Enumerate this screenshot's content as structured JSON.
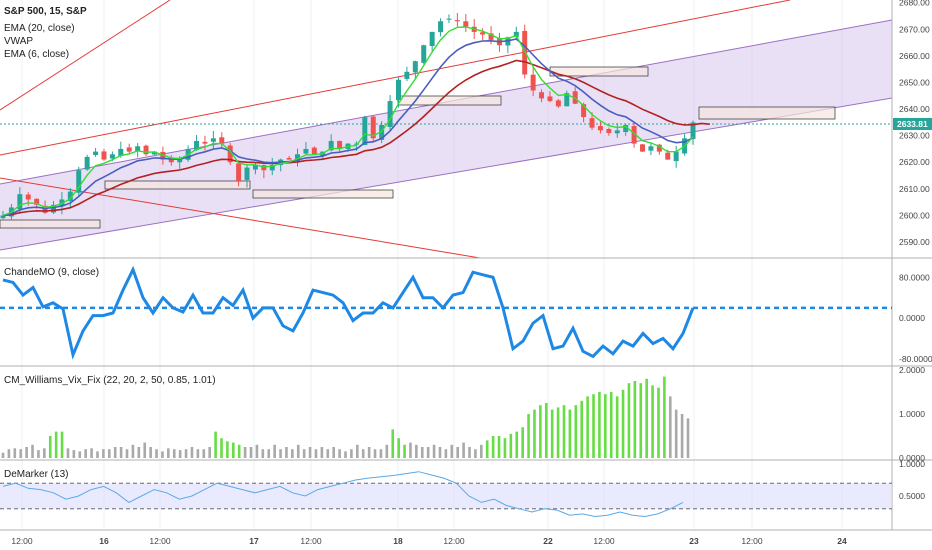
{
  "chart_data": [
    {
      "type": "candlestick",
      "title": "S&P 500, 15, S&P",
      "legend": [
        "EMA (20, close)",
        "VWAP",
        "EMA (6, close)"
      ],
      "colors": {
        "up": "#26a69a",
        "down": "#ef5350",
        "ema20": "#b22222",
        "vwap": "#4a5ebd",
        "ema6": "#33dd33",
        "channel": "#a77ac9"
      },
      "y_ticks": [
        2590,
        2600,
        2610,
        2620,
        2630,
        2640,
        2650,
        2660,
        2670,
        2680
      ],
      "y_ticks_labels": [
        "2590.00",
        "2600.00",
        "2610.00",
        "2620.00",
        "2630.00",
        "2640.00",
        "2650.00",
        "2660.00",
        "2670.00",
        "2680.00"
      ],
      "ylim": [
        2584,
        2681
      ],
      "current_price": "2633.81",
      "close_series": [
        2600,
        2603,
        2608,
        2606,
        2604,
        2601,
        2604,
        2606,
        2609,
        2617,
        2622,
        2624,
        2621,
        2623,
        2625,
        2624,
        2626,
        2623,
        2624,
        2621,
        2620,
        2621,
        2625,
        2628,
        2627,
        2629,
        2627,
        2620,
        2613,
        2618,
        2619,
        2617,
        2619,
        2621,
        2621,
        2623,
        2625,
        2623,
        2624,
        2628,
        2625,
        2627,
        2627,
        2637,
        2629,
        2634,
        2643,
        2651,
        2654,
        2658,
        2664,
        2669,
        2673,
        2674,
        2673,
        2671,
        2669,
        2668,
        2666,
        2664,
        2667,
        2669,
        2653,
        2647,
        2644,
        2643,
        2641,
        2646,
        2642,
        2637,
        2633,
        2632,
        2631,
        2632,
        2634,
        2627,
        2624,
        2626,
        2624,
        2621,
        2624,
        2629,
        2635
      ]
    },
    {
      "type": "line",
      "title": "ChandeMO (9, close)",
      "y_ticks_labels": [
        "80.0000",
        "0.0000",
        "-80.0000"
      ],
      "y_ticks": [
        80,
        0,
        -80
      ],
      "ylim": [
        -90,
        110
      ],
      "reference_line": 20,
      "colors": {
        "line": "#1e88e5"
      },
      "values": [
        75,
        70,
        45,
        60,
        22,
        30,
        18,
        -72,
        -25,
        5,
        5,
        10,
        55,
        95,
        40,
        10,
        40,
        20,
        12,
        45,
        10,
        10,
        40,
        25,
        55,
        0,
        20,
        20,
        -15,
        -25,
        10,
        55,
        50,
        45,
        30,
        -5,
        10,
        10,
        30,
        20,
        50,
        80,
        40,
        40,
        20,
        45,
        50,
        90,
        85,
        80,
        20,
        -60,
        -45,
        -10,
        5,
        -60,
        -55,
        -20,
        -65,
        -75,
        -55,
        -70,
        -45,
        -55,
        -30,
        -50,
        -40,
        -60,
        -30,
        20
      ]
    },
    {
      "type": "bar",
      "title": "CM_Williams_Vix_Fix (22, 20, 2, 50, 0.85, 1.01)",
      "y_ticks_labels": [
        "2.0000",
        "1.0000",
        "0.0000"
      ],
      "y_ticks": [
        2,
        1,
        0
      ],
      "ylim": [
        0,
        2
      ],
      "colors": {
        "normal": "#a9a9a9",
        "spike": "#66dd44"
      },
      "values": [
        0.12,
        0.2,
        0.22,
        0.2,
        0.25,
        0.3,
        0.18,
        0.22,
        0.5,
        0.6,
        0.6,
        0.22,
        0.18,
        0.15,
        0.2,
        0.22,
        0.15,
        0.2,
        0.2,
        0.25,
        0.25,
        0.2,
        0.3,
        0.25,
        0.35,
        0.25,
        0.2,
        0.15,
        0.22,
        0.2,
        0.18,
        0.2,
        0.25,
        0.2,
        0.2,
        0.25,
        0.6,
        0.45,
        0.38,
        0.35,
        0.3,
        0.25,
        0.25,
        0.3,
        0.2,
        0.2,
        0.3,
        0.2,
        0.25,
        0.2,
        0.3,
        0.2,
        0.25,
        0.2,
        0.25,
        0.2,
        0.25,
        0.2,
        0.15,
        0.2,
        0.3,
        0.2,
        0.25,
        0.2,
        0.2,
        0.3,
        0.65,
        0.45,
        0.3,
        0.35,
        0.3,
        0.25,
        0.25,
        0.3,
        0.25,
        0.2,
        0.3,
        0.25,
        0.35,
        0.25,
        0.2,
        0.3,
        0.4,
        0.5,
        0.5,
        0.45,
        0.55,
        0.6,
        0.7,
        1.0,
        1.1,
        1.2,
        1.25,
        1.1,
        1.15,
        1.2,
        1.1,
        1.2,
        1.3,
        1.4,
        1.45,
        1.5,
        1.45,
        1.5,
        1.4,
        1.55,
        1.7,
        1.75,
        1.7,
        1.8,
        1.65,
        1.6,
        1.85,
        1.4,
        1.1,
        1.0,
        0.9
      ],
      "spike": [
        false,
        false,
        false,
        false,
        false,
        false,
        false,
        false,
        true,
        true,
        true,
        false,
        false,
        false,
        false,
        false,
        false,
        false,
        false,
        false,
        false,
        false,
        false,
        false,
        false,
        false,
        false,
        false,
        false,
        false,
        false,
        false,
        false,
        false,
        false,
        false,
        true,
        true,
        true,
        true,
        true,
        false,
        false,
        false,
        false,
        false,
        false,
        false,
        false,
        false,
        false,
        false,
        false,
        false,
        false,
        false,
        false,
        false,
        false,
        false,
        false,
        false,
        false,
        false,
        false,
        false,
        true,
        true,
        true,
        false,
        false,
        false,
        false,
        false,
        false,
        false,
        false,
        false,
        false,
        false,
        false,
        false,
        true,
        true,
        true,
        true,
        true,
        true,
        true,
        true,
        true,
        true,
        true,
        true,
        true,
        true,
        true,
        true,
        true,
        true,
        true,
        true,
        true,
        true,
        true,
        true,
        true,
        true,
        true,
        true,
        true,
        true,
        true,
        false,
        false,
        false,
        false
      ]
    },
    {
      "type": "line",
      "title": "DeMarker (13)",
      "y_ticks_labels": [
        "1.0000",
        "0.5000"
      ],
      "y_ticks": [
        1,
        0.5
      ],
      "ylim": [
        0,
        1
      ],
      "bands": [
        0.3,
        0.7
      ],
      "colors": {
        "line": "#5aa9e6",
        "band": "#dcdcff"
      },
      "values": [
        0.65,
        0.7,
        0.62,
        0.6,
        0.55,
        0.45,
        0.5,
        0.6,
        0.65,
        0.55,
        0.4,
        0.5,
        0.6,
        0.55,
        0.45,
        0.5,
        0.6,
        0.7,
        0.65,
        0.6,
        0.55,
        0.6,
        0.65,
        0.55,
        0.5,
        0.6,
        0.65,
        0.7,
        0.75,
        0.78,
        0.8,
        0.82,
        0.85,
        0.88,
        0.83,
        0.78,
        0.7,
        0.5,
        0.4,
        0.45,
        0.35,
        0.3,
        0.25,
        0.3,
        0.28,
        0.2,
        0.22,
        0.18,
        0.2,
        0.25,
        0.2,
        0.18,
        0.22,
        0.3,
        0.4
      ]
    }
  ],
  "x_axis_labels": [
    "12:00",
    "16",
    "12:00",
    "17",
    "12:00",
    "18",
    "12:00",
    "22",
    "12:00",
    "23",
    "12:00",
    "24"
  ]
}
